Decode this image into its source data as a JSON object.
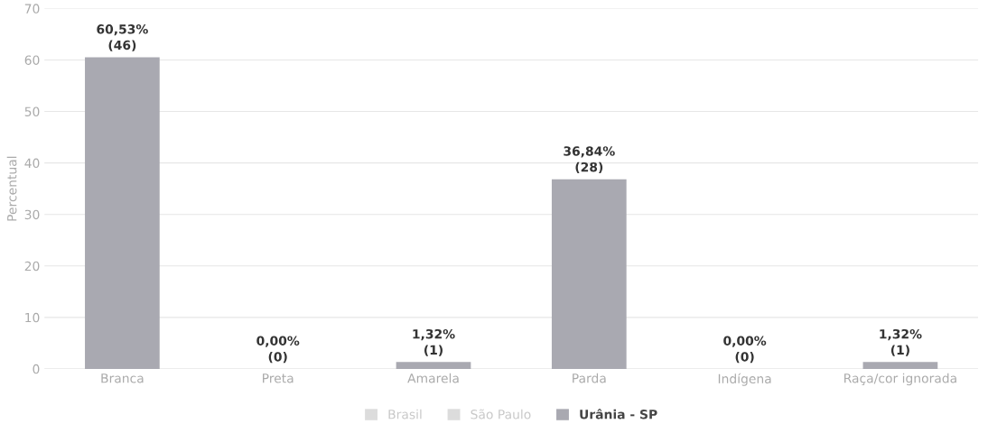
{
  "chart_data": {
    "type": "bar",
    "ylabel": "Percentual",
    "categories": [
      "Branca",
      "Preta",
      "Amarela",
      "Parda",
      "Indígena",
      "Raça/cor ignorada"
    ],
    "series": [
      {
        "name": "Brasil",
        "color": "#dcdcdc",
        "values": [
          null,
          null,
          null,
          null,
          null,
          null
        ]
      },
      {
        "name": "São Paulo",
        "color": "#dcdcdc",
        "values": [
          null,
          null,
          null,
          null,
          null,
          null
        ]
      },
      {
        "name": "Urânia - SP",
        "color": "#a9a9b1",
        "values": [
          60.53,
          0,
          1.32,
          36.84,
          0,
          1.32
        ],
        "value_labels": [
          "60,53%\n(46)",
          "0,00%\n(0)",
          "1,32%\n(1)",
          "36,84%\n(28)",
          "0,00%\n(0)",
          "1,32%\n(1)"
        ]
      }
    ],
    "ylim": [
      0,
      70
    ],
    "yticks": [
      0,
      10,
      20,
      30,
      40,
      50,
      60,
      70
    ],
    "grid": "y",
    "legend": "bottom"
  }
}
